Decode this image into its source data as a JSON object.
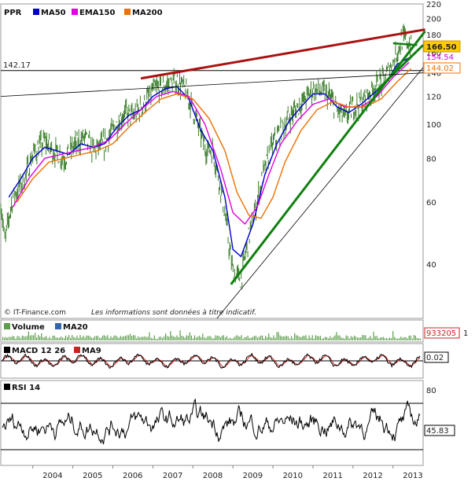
{
  "legend": {
    "ticker": "PPR",
    "ma50": "MA50",
    "ema150": "EMA150",
    "ma200": "MA200",
    "volume": "Volume",
    "ma20": "MA20",
    "macd": "MACD 12 26",
    "ma9": "MA9",
    "rsi": "RSI 14"
  },
  "colors": {
    "ma50": "#0000cc",
    "ema150": "#e000e0",
    "ma200": "#f07000",
    "price": "#3a7d2a",
    "resistance": "#aa1111",
    "trend": "#108010",
    "volume": "#5a9e4a",
    "volume_ma": "#3366aa",
    "macd": "#000000",
    "macd_signal": "#cc2222",
    "rsi": "#000000"
  },
  "footer": {
    "source": "© IT-Finance.com",
    "disclaimer": "Les informations sont données à titre indicatif."
  },
  "chart_data": [
    {
      "type": "line",
      "panel": "price",
      "scale": "log",
      "ylim": [
        28,
        220
      ],
      "yticks": [
        40,
        60,
        80,
        100,
        120,
        140,
        160,
        180,
        200,
        220
      ],
      "x_labels": [
        "2004",
        "2005",
        "2006",
        "2007",
        "2008",
        "2009",
        "2010",
        "2011",
        "2012",
        "2013"
      ],
      "xlim": [
        2003.2,
        2013.75
      ],
      "level_line": {
        "label": "142.17",
        "value": 142.17
      },
      "value_tags": [
        {
          "label": "166.50",
          "value": 166.5,
          "series": "price"
        },
        {
          "label": "154.54",
          "value": 154.54,
          "series": "ma50"
        },
        {
          "label": "144.02",
          "value": 144.02,
          "series": "ma200"
        }
      ],
      "price_path": [
        [
          2003.2,
          60
        ],
        [
          2003.3,
          46
        ],
        [
          2003.5,
          62
        ],
        [
          2003.8,
          70
        ],
        [
          2004.0,
          82
        ],
        [
          2004.3,
          90
        ],
        [
          2004.5,
          84
        ],
        [
          2004.8,
          80
        ],
        [
          2005.0,
          86
        ],
        [
          2005.3,
          92
        ],
        [
          2005.5,
          84
        ],
        [
          2005.8,
          88
        ],
        [
          2006.0,
          96
        ],
        [
          2006.3,
          108
        ],
        [
          2006.5,
          105
        ],
        [
          2006.8,
          115
        ],
        [
          2007.0,
          125
        ],
        [
          2007.3,
          128
        ],
        [
          2007.6,
          133
        ],
        [
          2007.8,
          126
        ],
        [
          2008.0,
          110
        ],
        [
          2008.3,
          86
        ],
        [
          2008.5,
          84
        ],
        [
          2008.7,
          65
        ],
        [
          2008.9,
          45
        ],
        [
          2009.0,
          38
        ],
        [
          2009.2,
          36
        ],
        [
          2009.4,
          48
        ],
        [
          2009.6,
          60
        ],
        [
          2009.8,
          75
        ],
        [
          2010.0,
          88
        ],
        [
          2010.3,
          100
        ],
        [
          2010.5,
          108
        ],
        [
          2010.8,
          118
        ],
        [
          2011.0,
          126
        ],
        [
          2011.2,
          124
        ],
        [
          2011.4,
          120
        ],
        [
          2011.6,
          110
        ],
        [
          2011.8,
          104
        ],
        [
          2012.0,
          112
        ],
        [
          2012.3,
          118
        ],
        [
          2012.5,
          126
        ],
        [
          2012.8,
          135
        ],
        [
          2013.0,
          150
        ],
        [
          2013.2,
          172
        ],
        [
          2013.3,
          176
        ],
        [
          2013.45,
          166.5
        ]
      ],
      "series": [
        {
          "name": "MA50",
          "points": [
            [
              2003.4,
              62
            ],
            [
              2003.7,
              70
            ],
            [
              2004.0,
              80
            ],
            [
              2004.3,
              86
            ],
            [
              2004.6,
              84
            ],
            [
              2004.9,
              82
            ],
            [
              2005.2,
              88
            ],
            [
              2005.5,
              86
            ],
            [
              2005.8,
              88
            ],
            [
              2006.1,
              98
            ],
            [
              2006.4,
              106
            ],
            [
              2006.7,
              110
            ],
            [
              2007.0,
              120
            ],
            [
              2007.3,
              126
            ],
            [
              2007.6,
              128
            ],
            [
              2007.9,
              118
            ],
            [
              2008.2,
              96
            ],
            [
              2008.5,
              84
            ],
            [
              2008.8,
              62
            ],
            [
              2009.0,
              44
            ],
            [
              2009.2,
              42
            ],
            [
              2009.5,
              52
            ],
            [
              2009.8,
              72
            ],
            [
              2010.1,
              88
            ],
            [
              2010.4,
              102
            ],
            [
              2010.7,
              112
            ],
            [
              2011.0,
              122
            ],
            [
              2011.3,
              122
            ],
            [
              2011.6,
              112
            ],
            [
              2011.9,
              108
            ],
            [
              2012.2,
              114
            ],
            [
              2012.5,
              122
            ],
            [
              2012.8,
              130
            ],
            [
              2013.1,
              148
            ],
            [
              2013.4,
              154.54
            ]
          ]
        },
        {
          "name": "EMA150",
          "points": [
            [
              2003.5,
              58
            ],
            [
              2003.9,
              70
            ],
            [
              2004.3,
              80
            ],
            [
              2004.7,
              82
            ],
            [
              2005.1,
              84
            ],
            [
              2005.5,
              86
            ],
            [
              2005.9,
              90
            ],
            [
              2006.3,
              100
            ],
            [
              2006.7,
              110
            ],
            [
              2007.1,
              120
            ],
            [
              2007.5,
              124
            ],
            [
              2007.9,
              120
            ],
            [
              2008.3,
              100
            ],
            [
              2008.7,
              74
            ],
            [
              2009.0,
              56
            ],
            [
              2009.3,
              52
            ],
            [
              2009.6,
              58
            ],
            [
              2009.9,
              72
            ],
            [
              2010.2,
              88
            ],
            [
              2010.6,
              102
            ],
            [
              2011.0,
              114
            ],
            [
              2011.4,
              118
            ],
            [
              2011.8,
              112
            ],
            [
              2012.2,
              112
            ],
            [
              2012.6,
              120
            ],
            [
              2013.0,
              136
            ],
            [
              2013.4,
              150
            ]
          ]
        },
        {
          "name": "MA200",
          "points": [
            [
              2003.6,
              60
            ],
            [
              2004.0,
              70
            ],
            [
              2004.4,
              78
            ],
            [
              2004.8,
              80
            ],
            [
              2005.2,
              82
            ],
            [
              2005.6,
              84
            ],
            [
              2006.0,
              88
            ],
            [
              2006.4,
              98
            ],
            [
              2006.8,
              108
            ],
            [
              2007.2,
              118
            ],
            [
              2007.6,
              122
            ],
            [
              2008.0,
              118
            ],
            [
              2008.4,
              104
            ],
            [
              2008.8,
              84
            ],
            [
              2009.1,
              64
            ],
            [
              2009.4,
              55
            ],
            [
              2009.7,
              54
            ],
            [
              2010.0,
              62
            ],
            [
              2010.3,
              78
            ],
            [
              2010.7,
              96
            ],
            [
              2011.1,
              110
            ],
            [
              2011.5,
              116
            ],
            [
              2011.9,
              112
            ],
            [
              2012.3,
              112
            ],
            [
              2012.7,
              118
            ],
            [
              2013.1,
              132
            ],
            [
              2013.45,
              144.02
            ]
          ]
        }
      ],
      "trendlines": [
        {
          "kind": "resistance",
          "points": [
            [
              2006.7,
              135
            ],
            [
              2013.8,
              186
            ]
          ]
        },
        {
          "kind": "support",
          "points": [
            [
              2008.95,
              35
            ],
            [
              2013.8,
              184
            ]
          ]
        },
        {
          "kind": "support-short",
          "points": [
            [
              2012.6,
              125
            ],
            [
              2013.75,
              168
            ]
          ]
        },
        {
          "kind": "neckline",
          "points": [
            [
              2013.0,
              170
            ],
            [
              2013.6,
              168
            ]
          ]
        },
        {
          "kind": "channel",
          "points": [
            [
              2003.2,
              120
            ],
            [
              2013.75,
              140
            ]
          ]
        },
        {
          "kind": "channel",
          "points": [
            [
              2008.6,
              28
            ],
            [
              2013.75,
              145
            ]
          ]
        }
      ]
    },
    {
      "type": "bar",
      "panel": "volume",
      "value_tags": [
        {
          "label": "933205",
          "value": 933205
        }
      ],
      "aside": "1"
    },
    {
      "type": "line",
      "panel": "macd",
      "value_tags": [
        {
          "label": "0.02",
          "value": 0.02
        }
      ]
    },
    {
      "type": "line",
      "panel": "rsi",
      "ylim": [
        0,
        100
      ],
      "yticks": [
        80
      ],
      "levels": [
        70,
        30
      ],
      "value_tags": [
        {
          "label": "45.83",
          "value": 45.83
        }
      ]
    }
  ]
}
